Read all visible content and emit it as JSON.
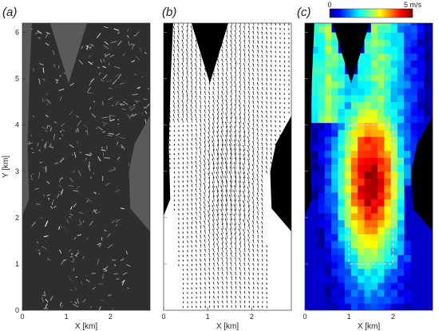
{
  "chart_data": [
    {
      "panel_label": "(a)",
      "type": "image",
      "xlabel": "X [km]",
      "ylabel": "Y [km]",
      "xlim": [
        0,
        2.9
      ],
      "ylim": [
        0,
        6.2
      ],
      "x_ticks": [
        0,
        1,
        2
      ],
      "y_ticks": [
        0,
        1,
        2,
        3,
        4,
        5,
        6
      ]
    },
    {
      "panel_label": "(b)",
      "type": "quiver",
      "xlabel": "X [km]",
      "xlim": [
        0,
        2.9
      ],
      "ylim": [
        0,
        6.2
      ],
      "x_ticks": [
        0,
        1,
        2
      ],
      "y_ticks": [
        0,
        1,
        2,
        3,
        4,
        5,
        6
      ],
      "grid_step_km": 0.1,
      "vector_direction": "south-south-west",
      "vector_direction_deg": 255,
      "speed_peak_x_km": 1.5,
      "speed_peak_y_km": 2.8
    },
    {
      "panel_label": "(c)",
      "type": "heatmap",
      "xlabel": "X [km]",
      "xlim": [
        0,
        2.9
      ],
      "ylim": [
        0,
        6.2
      ],
      "x_ticks": [
        0,
        1,
        2
      ],
      "y_ticks": [
        0,
        1,
        2,
        3,
        4,
        5,
        6
      ],
      "colorbar": {
        "min": 0,
        "max": 5,
        "min_label": "0",
        "max_label": "5 m/s",
        "colormap": "jet"
      },
      "cell_size_km": 0.15,
      "speed_peak_m_s": 4.8,
      "speed_peak_x_km": 1.5,
      "speed_peak_y_km": 2.8,
      "highlight_box": {
        "x0": 1.0,
        "x1": 2.0,
        "y0": 1.0,
        "y1": 4.0
      }
    }
  ],
  "colors": {
    "land": "#000000",
    "water_b": "#ffffff",
    "sar_dark": "#2e2e2e",
    "sar_bright": "#d8d8d8",
    "arrow": "#111111",
    "box": "#f2d0c8"
  }
}
